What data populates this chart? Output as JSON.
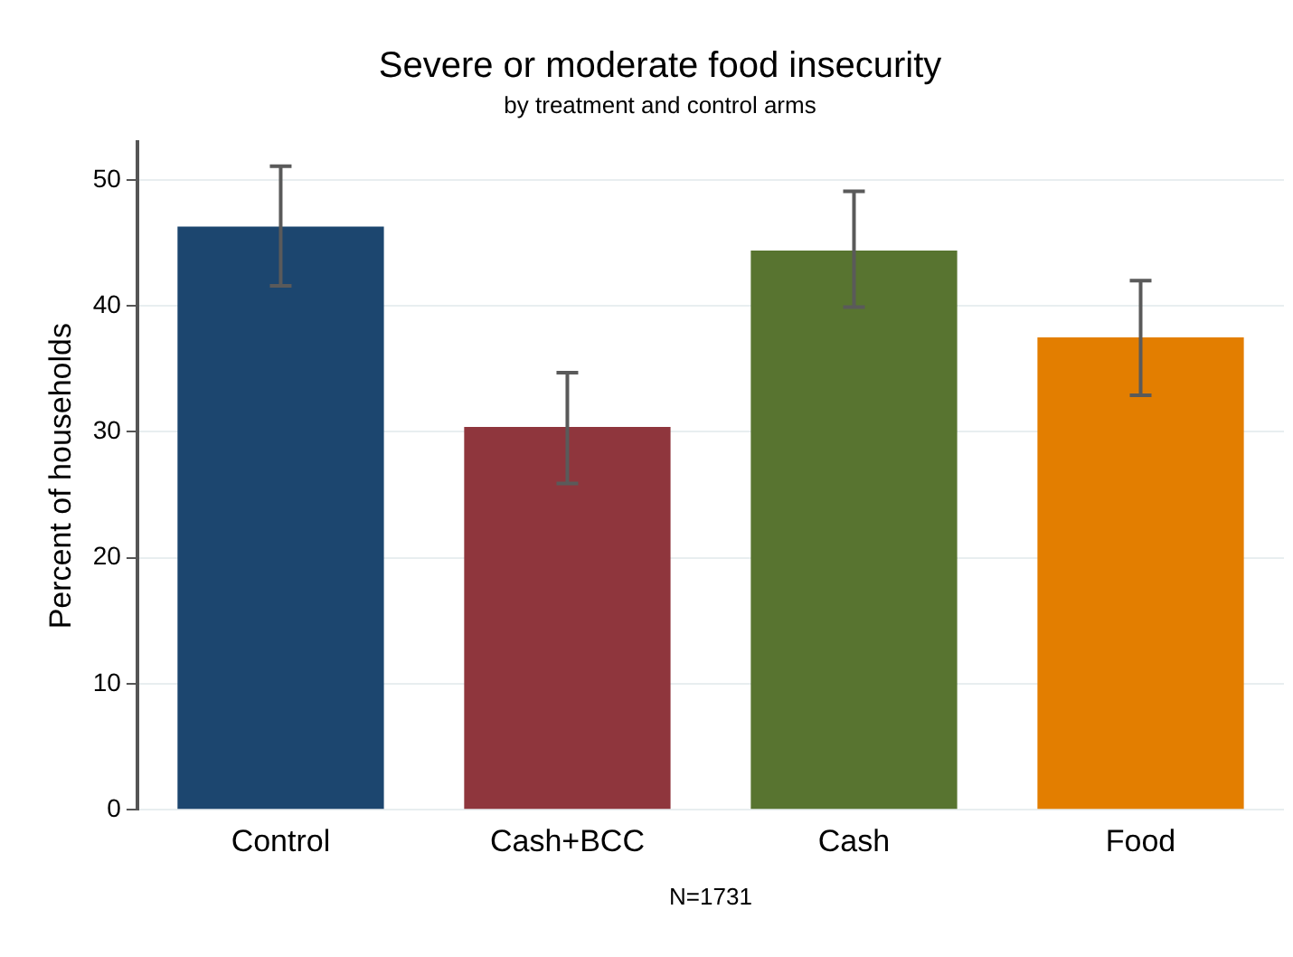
{
  "chart_data": {
    "type": "bar",
    "title": "Severe or moderate food insecurity",
    "subtitle": "by treatment and control arms",
    "ylabel": "Percent of households",
    "categories": [
      "Control",
      "Cash+BCC",
      "Cash",
      "Food"
    ],
    "values": [
      46.3,
      30.4,
      44.4,
      37.5
    ],
    "colors": [
      "#1c466f",
      "#8f363d",
      "#587430",
      "#e37e00"
    ],
    "errors": [
      [
        41.6,
        51.1
      ],
      [
        25.9,
        34.7
      ],
      [
        39.9,
        49.1
      ],
      [
        32.9,
        42.0
      ]
    ],
    "ylim": [
      0,
      53
    ],
    "yticks": [
      0,
      10,
      20,
      30,
      40,
      50
    ],
    "grid": "y",
    "legend": false,
    "annotations": [
      "N=1731"
    ]
  }
}
